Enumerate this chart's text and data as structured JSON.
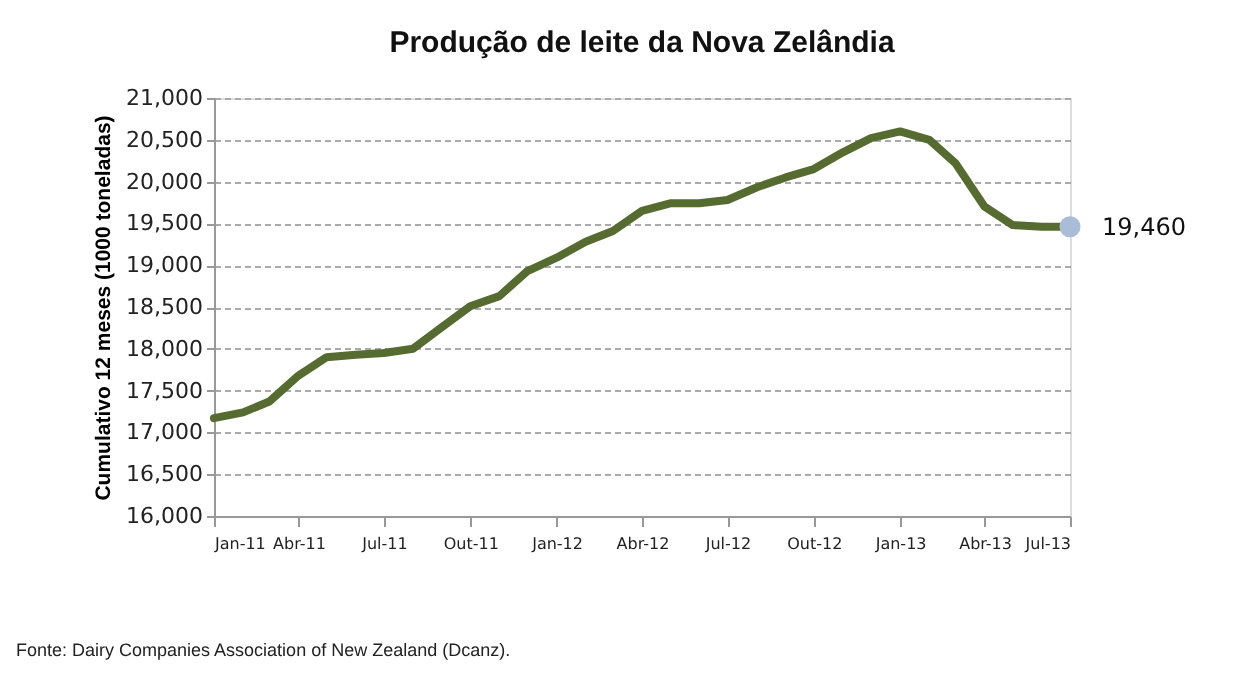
{
  "chart_data": {
    "type": "line",
    "title": "Produção de leite da Nova Zelândia",
    "ylabel": "Cumulativo 12 meses (1000 toneladas)",
    "x": [
      "2011-01",
      "2011-02",
      "2011-03",
      "2011-04",
      "2011-05",
      "2011-06",
      "2011-07",
      "2011-08",
      "2011-09",
      "2011-10",
      "2011-11",
      "2011-12",
      "2012-01",
      "2012-02",
      "2012-03",
      "2012-04",
      "2012-05",
      "2012-06",
      "2012-07",
      "2012-08",
      "2012-09",
      "2012-10",
      "2012-11",
      "2012-12",
      "2013-01",
      "2013-02",
      "2013-03",
      "2013-04",
      "2013-05",
      "2013-06",
      "2013-07"
    ],
    "series": [
      {
        "color": "#566b30",
        "values": [
          17170,
          17240,
          17370,
          17680,
          17900,
          17930,
          17950,
          18000,
          18260,
          18510,
          18630,
          18930,
          19090,
          19280,
          19410,
          19650,
          19740,
          19740,
          19780,
          19930,
          20050,
          20150,
          20350,
          20520,
          20600,
          20500,
          20220,
          19700,
          19480,
          19460,
          19460
        ]
      },
      {
        "type": "scatter",
        "color": "#a9bcd8",
        "marker": "circle",
        "x": [
          "2013-07"
        ],
        "values": [
          19460
        ]
      }
    ],
    "xlim": [
      "2011-01",
      "2013-07"
    ],
    "xticks": [
      {
        "value": "2011-01",
        "label": "Jan-11"
      },
      {
        "value": "2011-04",
        "label": "Abr-11"
      },
      {
        "value": "2011-07",
        "label": "Jul-11"
      },
      {
        "value": "2011-10",
        "label": "Out-11"
      },
      {
        "value": "2012-01",
        "label": "Jan-12"
      },
      {
        "value": "2012-04",
        "label": "Abr-12"
      },
      {
        "value": "2012-07",
        "label": "Jul-12"
      },
      {
        "value": "2012-10",
        "label": "Out-12"
      },
      {
        "value": "2013-01",
        "label": "Jan-13"
      },
      {
        "value": "2013-04",
        "label": "Abr-13"
      },
      {
        "value": "2013-07",
        "label": "Jul-13"
      }
    ],
    "ylim": [
      16000,
      21000
    ],
    "yticks": [
      {
        "value": 16000,
        "label": "16,000"
      },
      {
        "value": 16500,
        "label": "16,500"
      },
      {
        "value": 17000,
        "label": "17,000"
      },
      {
        "value": 17500,
        "label": "17,500"
      },
      {
        "value": 18000,
        "label": "18,000"
      },
      {
        "value": 18500,
        "label": "18,500"
      },
      {
        "value": 19000,
        "label": "19,000"
      },
      {
        "value": 19500,
        "label": "19,500"
      },
      {
        "value": 20000,
        "label": "20,000"
      },
      {
        "value": 20500,
        "label": "20,500"
      },
      {
        "value": 21000,
        "label": "21,000"
      }
    ],
    "grid": "y",
    "line_style": "solid",
    "marker": "none",
    "annotations": [
      {
        "text": "19,460",
        "x": "2013-07",
        "y": 19460
      },
      "Fonte: Dairy Companies Association of New Zealand (Dcanz)."
    ]
  }
}
